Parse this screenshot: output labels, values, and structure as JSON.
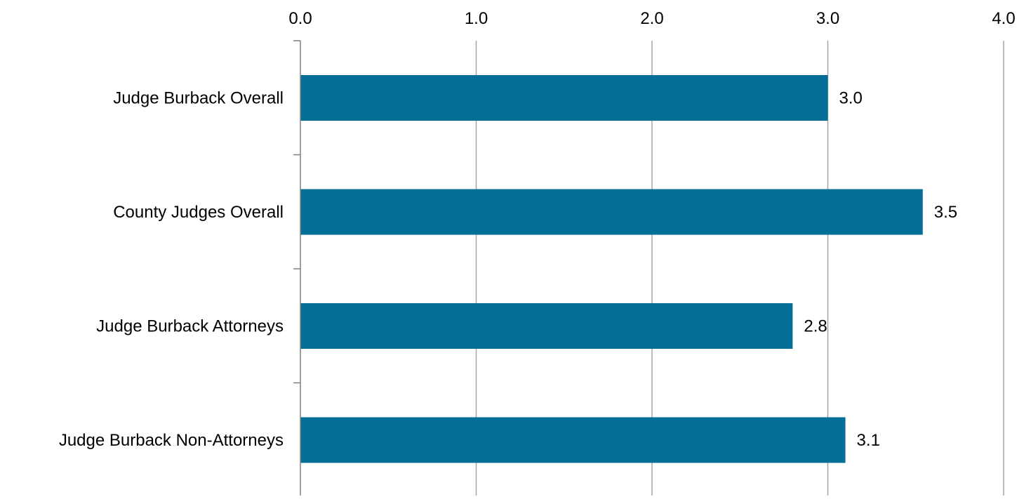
{
  "chart_data": {
    "type": "bar",
    "orientation": "horizontal",
    "title": "",
    "xlabel": "",
    "ylabel": "",
    "categories": [
      "Judge Burback Overall",
      "County Judges Overall",
      "Judge Burback Attorneys",
      "Judge Burback Non-Attorneys"
    ],
    "values": [
      3.0,
      3.54,
      2.8,
      3.1
    ],
    "value_labels": [
      "3.0",
      "3.5",
      "2.8",
      "3.1"
    ],
    "xlim": [
      0,
      4
    ],
    "x_ticks": [
      0,
      1,
      2,
      3,
      4
    ],
    "x_tick_labels": [
      "0.0",
      "1.0",
      "2.0",
      "3.0",
      "4.0"
    ],
    "x_axis_position": "top",
    "grid": true,
    "legend": "none",
    "colors": {
      "bar": "#046F96",
      "grid": "#A6A6A6",
      "axis": "#808080"
    }
  }
}
